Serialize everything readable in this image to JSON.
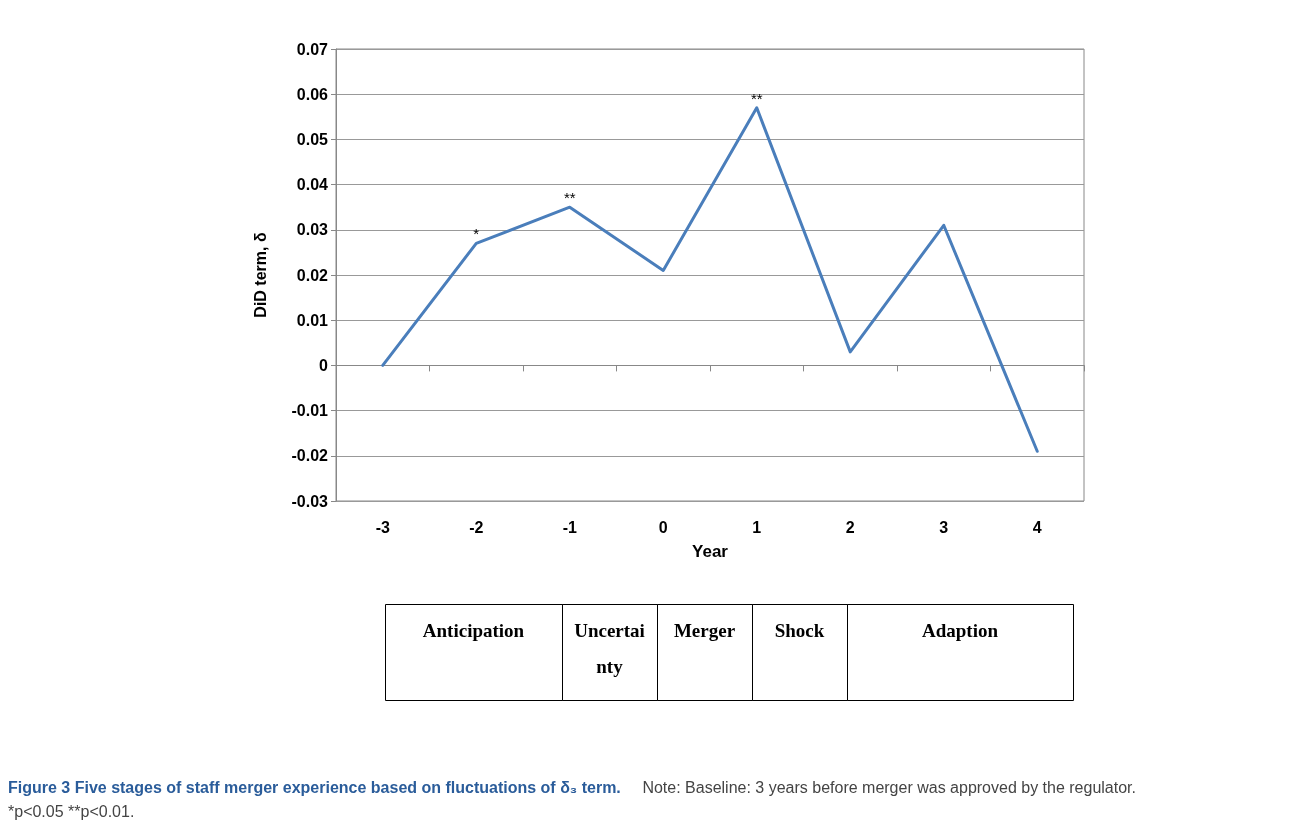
{
  "chart_data": [
    {
      "type": "line",
      "title": "Figure 3 Five stages of staff merger experience based on fluctuations of δ₃ term.",
      "xlabel": "Year",
      "ylabel": "DiD term, δ",
      "categories": [
        "-3",
        "-2",
        "-1",
        "0",
        "1",
        "2",
        "3",
        "4"
      ],
      "series": [
        {
          "color": "#4a7ebb",
          "values": [
            0,
            0.027,
            0.035,
            0.021,
            0.057,
            0.003,
            0.031,
            -0.019
          ]
        }
      ],
      "ylim": [
        -0.03,
        0.07
      ],
      "yticks": [
        -0.03,
        -0.02,
        -0.01,
        0,
        0.01,
        0.02,
        0.03,
        0.04,
        0.05,
        0.06,
        0.07
      ],
      "grid": "y",
      "marker": "none",
      "line_style": "solid",
      "annotations": [
        {
          "text": "*",
          "x": "-2",
          "y": 0.027
        },
        {
          "text": "**",
          "x": "-1",
          "y": 0.035
        },
        {
          "text": "**",
          "x": "1",
          "y": 0.057
        },
        "Note: Baseline: 3 years before merger was approved by the regulator. *p<0.05 **p<0.01."
      ]
    },
    {
      "type": "other",
      "annotations": [
        "Anticipation",
        "Uncertainty",
        "Merger",
        "Shock",
        "Adaption"
      ]
    }
  ]
}
